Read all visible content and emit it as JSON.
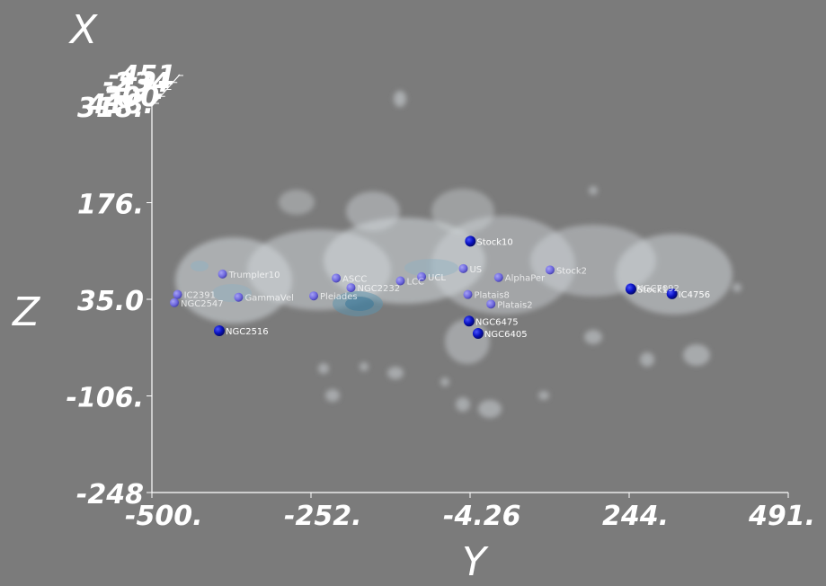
{
  "chart_data": {
    "type": "scatter",
    "title": "",
    "xlabel": "Y",
    "ylabel": "Z",
    "depth_label": "X",
    "x_ticks": [
      "-500.",
      "-252.",
      "-4.26",
      "244.",
      "491."
    ],
    "y_ticks": [
      "318.",
      "176.",
      "35.0",
      "-106.",
      "-248"
    ],
    "depth_ticks": [
      "-451",
      "-234",
      "-17.",
      "200",
      "418."
    ],
    "xlim": [
      -500,
      491
    ],
    "ylim": [
      -248,
      318
    ],
    "colors": {
      "background": "#7b7b7b",
      "cloud": "#d4d9dd",
      "dense": "#5f93ad",
      "cluster_near": "#0a12c0",
      "cluster_far": "#6c66dd"
    },
    "clusters": [
      {
        "label": "Stock10",
        "x": -4,
        "z": 120,
        "near": true
      },
      {
        "label": "Trumpler10",
        "x": -390,
        "z": 72,
        "near": false
      },
      {
        "label": "IC2391",
        "x": -460,
        "z": 42,
        "near": false
      },
      {
        "label": "NGC2547",
        "x": -465,
        "z": 30,
        "near": false
      },
      {
        "label": "GammaVel",
        "x": -365,
        "z": 38,
        "near": false
      },
      {
        "label": "Pleiades",
        "x": -248,
        "z": 40,
        "near": false
      },
      {
        "label": "ASCC",
        "x": -213,
        "z": 66,
        "near": false
      },
      {
        "label": "NGC2232",
        "x": -190,
        "z": 52,
        "near": false
      },
      {
        "label": "LCC",
        "x": -113,
        "z": 62,
        "near": false
      },
      {
        "label": "UCL",
        "x": -80,
        "z": 68,
        "near": false
      },
      {
        "label": "US",
        "x": -15,
        "z": 80,
        "near": false
      },
      {
        "label": "AlphaPer",
        "x": 40,
        "z": 67,
        "near": false
      },
      {
        "label": "Stock2",
        "x": 120,
        "z": 78,
        "near": false
      },
      {
        "label": "Platais8",
        "x": -8,
        "z": 42,
        "near": false
      },
      {
        "label": "Platais2",
        "x": 28,
        "z": 28,
        "near": false
      },
      {
        "label": "NGC6475",
        "x": -6,
        "z": 3,
        "near": true
      },
      {
        "label": "NGC6405",
        "x": 8,
        "z": -15,
        "near": true
      },
      {
        "label": "NGC2516",
        "x": -395,
        "z": -11,
        "near": true
      },
      {
        "label": "NGC7092",
        "x": 245,
        "z": 52,
        "near": false
      },
      {
        "label": "Stock1",
        "x": 246,
        "z": 50,
        "near": true
      },
      {
        "label": "IC4756",
        "x": 310,
        "z": 43,
        "near": true
      }
    ]
  }
}
